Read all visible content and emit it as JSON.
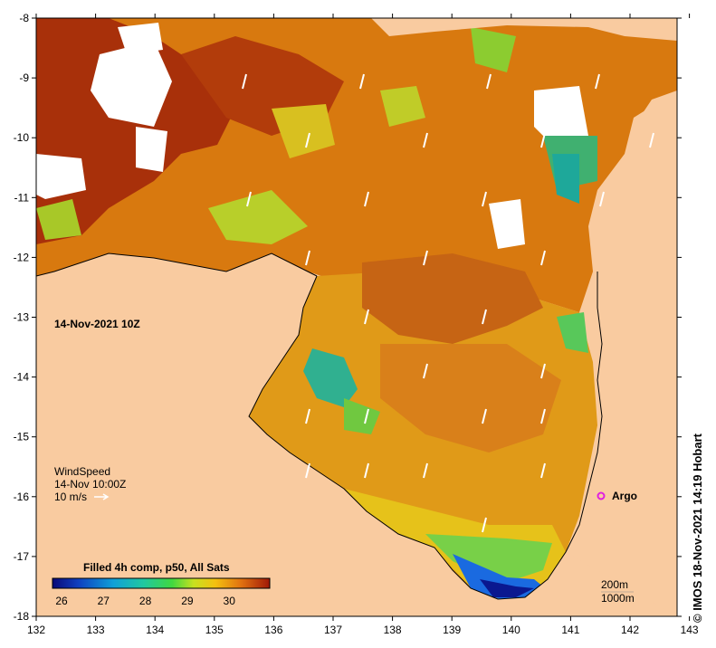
{
  "map": {
    "timestamp_label": "14-Nov-2021 10Z",
    "x_ticks": [
      "132",
      "133",
      "134",
      "135",
      "136",
      "137",
      "138",
      "139",
      "140",
      "141",
      "142",
      "143"
    ],
    "y_ticks": [
      "-8",
      "-9",
      "-10",
      "-11",
      "-12",
      "-13",
      "-14",
      "-15",
      "-16",
      "-17",
      "-18"
    ],
    "wind": {
      "title": "WindSpeed",
      "time": "14-Nov 10:00Z",
      "scale_label": "10 m/s"
    },
    "argo_label": "Argo",
    "colorbar": {
      "title": "Filled 4h comp, p50, All Sats",
      "ticks": [
        "26",
        "27",
        "28",
        "29",
        "30"
      ]
    },
    "depth_contours": [
      "200m",
      "1000m"
    ],
    "credit": "© IMOS 18-Nov-2021 14:19 Hobart",
    "colors": {
      "land": "#f9cba0",
      "ocean_warm": "#d97a10",
      "ocean_hot": "#a52a08",
      "ocean_cool": "#2fae9a",
      "argo": "#e020e0"
    }
  }
}
